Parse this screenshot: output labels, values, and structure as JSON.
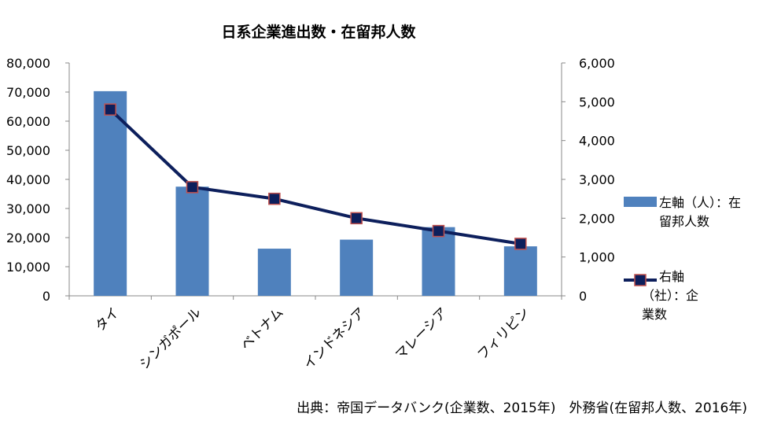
{
  "chart_data": {
    "type": "bar",
    "title": "日系企業進出数・在留邦人数",
    "categories": [
      "タイ",
      "シンガポール",
      "ベトナム",
      "インドネシア",
      "マレーシア",
      "フィリピン"
    ],
    "series": [
      {
        "name": "左軸（人）：在留邦人数",
        "type": "bar",
        "axis": "left",
        "color": "#4f81bd",
        "values": [
          70300,
          37500,
          16200,
          19300,
          23600,
          17000
        ]
      },
      {
        "name": "右軸（社）：企業数",
        "type": "line",
        "axis": "right",
        "color": "#0d1f5c",
        "marker_fill": "#0d1f5c",
        "marker_edge": "#c0504d",
        "values": [
          4800,
          2800,
          2500,
          2000,
          1670,
          1340
        ]
      }
    ],
    "y_left": {
      "min": 0,
      "max": 80000,
      "ticks": [
        0,
        10000,
        20000,
        30000,
        40000,
        50000,
        60000,
        70000,
        80000
      ],
      "tick_labels": [
        "0",
        "10,000",
        "20,000",
        "30,000",
        "40,000",
        "50,000",
        "60,000",
        "70,000",
        "80,000"
      ]
    },
    "y_right": {
      "min": 0,
      "max": 6000,
      "ticks": [
        0,
        1000,
        2000,
        3000,
        4000,
        5000,
        6000
      ],
      "tick_labels": [
        "0",
        "1,000",
        "2,000",
        "3,000",
        "4,000",
        "5,000",
        "6,000"
      ]
    },
    "grid": false,
    "legend_position": "right",
    "legend": {
      "bar_lines": [
        "左軸（人）：在",
        "留邦人数"
      ],
      "line_lines": [
        "右軸",
        "（社）：企",
        "業数"
      ]
    },
    "source_note": "出典：帝国データバンク(企業数、2015年)　外務省(在留邦人数、2016年)"
  }
}
